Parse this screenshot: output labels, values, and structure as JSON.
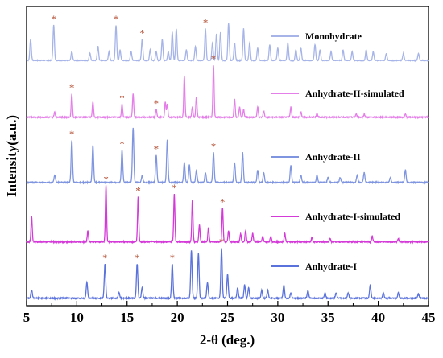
{
  "chart_data": {
    "type": "line",
    "xlabel": "2-θ (deg.)",
    "ylabel": "Intensity(a.u.)",
    "xlim": [
      5,
      45
    ],
    "x_ticks": [
      5,
      10,
      15,
      20,
      25,
      30,
      35,
      40,
      45
    ],
    "y_ticks_visible": false,
    "legend_placement": "right, beside each trace",
    "annotation_marker": "*",
    "annotation_color": "#b5543a",
    "series": [
      {
        "name": "Monohydrate",
        "color": "#a6b4e8",
        "peaks": [
          [
            5.4,
            0.6
          ],
          [
            7.7,
            1.0
          ],
          [
            9.5,
            0.25
          ],
          [
            11.3,
            0.2
          ],
          [
            12.1,
            0.4
          ],
          [
            13.2,
            0.25
          ],
          [
            13.9,
            1.0
          ],
          [
            14.3,
            0.3
          ],
          [
            15.4,
            0.25
          ],
          [
            16.5,
            0.6
          ],
          [
            17.3,
            0.3
          ],
          [
            17.9,
            0.25
          ],
          [
            18.5,
            0.6
          ],
          [
            19.1,
            0.25
          ],
          [
            19.5,
            0.8
          ],
          [
            19.9,
            0.9
          ],
          [
            20.9,
            0.3
          ],
          [
            21.8,
            0.4
          ],
          [
            22.8,
            0.9
          ],
          [
            23.5,
            0.5
          ],
          [
            23.9,
            0.75
          ],
          [
            24.3,
            0.8
          ],
          [
            25.1,
            1.05
          ],
          [
            25.7,
            0.5
          ],
          [
            26.6,
            0.9
          ],
          [
            27.2,
            0.5
          ],
          [
            28.0,
            0.35
          ],
          [
            29.2,
            0.45
          ],
          [
            30.0,
            0.35
          ],
          [
            31.0,
            0.5
          ],
          [
            31.8,
            0.3
          ],
          [
            32.3,
            0.35
          ],
          [
            33.7,
            0.45
          ],
          [
            34.2,
            0.3
          ],
          [
            35.3,
            0.25
          ],
          [
            36.5,
            0.3
          ],
          [
            37.4,
            0.25
          ],
          [
            38.8,
            0.3
          ],
          [
            39.5,
            0.25
          ],
          [
            40.8,
            0.2
          ],
          [
            42.5,
            0.2
          ],
          [
            44.0,
            0.2
          ]
        ],
        "starred_x": [
          7.7,
          13.9,
          16.5,
          22.8
        ]
      },
      {
        "name": "Anhydrate-II-simulated",
        "color": "#e47ee8",
        "peaks": [
          [
            7.8,
            0.1
          ],
          [
            9.5,
            0.45
          ],
          [
            11.6,
            0.3
          ],
          [
            14.5,
            0.25
          ],
          [
            15.6,
            0.45
          ],
          [
            17.9,
            0.15
          ],
          [
            18.8,
            0.3
          ],
          [
            19.0,
            0.25
          ],
          [
            20.7,
            0.8
          ],
          [
            21.5,
            0.2
          ],
          [
            21.9,
            0.4
          ],
          [
            23.6,
            1.0
          ],
          [
            25.7,
            0.35
          ],
          [
            26.2,
            0.2
          ],
          [
            26.6,
            0.15
          ],
          [
            28.0,
            0.2
          ],
          [
            28.6,
            0.12
          ],
          [
            31.3,
            0.2
          ],
          [
            32.3,
            0.1
          ],
          [
            33.9,
            0.08
          ],
          [
            37.8,
            0.06
          ],
          [
            38.6,
            0.06
          ],
          [
            42.7,
            0.06
          ]
        ],
        "starred_x": [
          9.5,
          14.5,
          17.9,
          23.6
        ]
      },
      {
        "name": "Anhydrate-II",
        "color": "#7f95e0",
        "peaks": [
          [
            7.8,
            0.15
          ],
          [
            9.5,
            0.85
          ],
          [
            11.6,
            0.75
          ],
          [
            14.5,
            0.65
          ],
          [
            15.6,
            1.1
          ],
          [
            16.5,
            0.15
          ],
          [
            17.9,
            0.55
          ],
          [
            19.0,
            0.85
          ],
          [
            20.7,
            0.4
          ],
          [
            21.2,
            0.35
          ],
          [
            21.9,
            0.25
          ],
          [
            22.8,
            0.2
          ],
          [
            23.6,
            0.6
          ],
          [
            25.7,
            0.4
          ],
          [
            26.5,
            0.6
          ],
          [
            28.0,
            0.25
          ],
          [
            28.6,
            0.2
          ],
          [
            31.3,
            0.35
          ],
          [
            32.3,
            0.15
          ],
          [
            33.9,
            0.15
          ],
          [
            35.0,
            0.1
          ],
          [
            36.2,
            0.1
          ],
          [
            37.9,
            0.15
          ],
          [
            38.6,
            0.2
          ],
          [
            41.2,
            0.1
          ],
          [
            42.7,
            0.25
          ]
        ],
        "starred_x": [
          9.5,
          14.5,
          17.9,
          23.6
        ]
      },
      {
        "name": "Anhydrate-I-simulated",
        "color": "#d43ad8",
        "peaks": [
          [
            5.5,
            0.45
          ],
          [
            11.1,
            0.2
          ],
          [
            12.9,
            1.0
          ],
          [
            16.1,
            0.8
          ],
          [
            19.7,
            0.85
          ],
          [
            21.5,
            0.75
          ],
          [
            22.2,
            0.3
          ],
          [
            23.1,
            0.25
          ],
          [
            24.5,
            0.6
          ],
          [
            25.1,
            0.2
          ],
          [
            26.3,
            0.15
          ],
          [
            26.8,
            0.2
          ],
          [
            27.5,
            0.15
          ],
          [
            28.5,
            0.1
          ],
          [
            29.3,
            0.1
          ],
          [
            30.7,
            0.15
          ],
          [
            33.4,
            0.08
          ],
          [
            35.2,
            0.06
          ],
          [
            39.4,
            0.1
          ],
          [
            42.0,
            0.06
          ]
        ],
        "starred_x": [
          12.9,
          16.1,
          19.7,
          24.5
        ]
      },
      {
        "name": "Anhydrate-I",
        "color": "#5a72dc",
        "peaks": [
          [
            5.5,
            0.15
          ],
          [
            11.0,
            0.3
          ],
          [
            12.8,
            0.65
          ],
          [
            14.2,
            0.1
          ],
          [
            16.0,
            0.65
          ],
          [
            16.5,
            0.2
          ],
          [
            19.5,
            0.65
          ],
          [
            21.4,
            0.9
          ],
          [
            22.1,
            0.85
          ],
          [
            23.0,
            0.3
          ],
          [
            24.4,
            0.95
          ],
          [
            25.0,
            0.45
          ],
          [
            26.0,
            0.2
          ],
          [
            26.7,
            0.25
          ],
          [
            27.1,
            0.2
          ],
          [
            28.4,
            0.15
          ],
          [
            29.0,
            0.15
          ],
          [
            30.6,
            0.25
          ],
          [
            31.3,
            0.1
          ],
          [
            33.0,
            0.15
          ],
          [
            34.7,
            0.1
          ],
          [
            35.8,
            0.1
          ],
          [
            37.0,
            0.1
          ],
          [
            39.2,
            0.25
          ],
          [
            40.5,
            0.1
          ],
          [
            42.0,
            0.1
          ],
          [
            44.0,
            0.08
          ]
        ],
        "starred_x": [
          12.8,
          16.0,
          19.5,
          24.4
        ]
      }
    ]
  }
}
